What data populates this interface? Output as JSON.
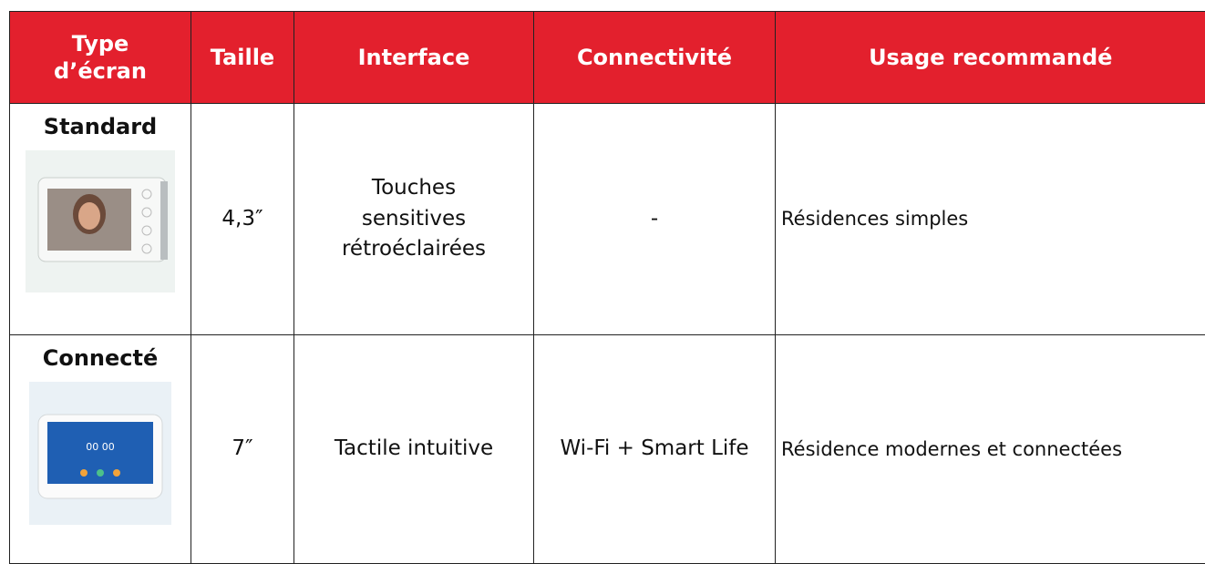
{
  "table": {
    "header": [
      "Type d’écran",
      "Taille",
      "Interface",
      "Connectivité",
      "Usage recommandé"
    ],
    "rows": [
      [
        "Standard",
        "4,3″",
        "Touches sensitives rétroéclairées",
        "-",
        "Résidences simples"
      ],
      [
        "Connecté",
        "7″",
        "Tactile intuitive",
        "Wi-Fi + Smart Life",
        "Résidence modernes et connectées"
      ]
    ],
    "screen_time": "00 00"
  }
}
